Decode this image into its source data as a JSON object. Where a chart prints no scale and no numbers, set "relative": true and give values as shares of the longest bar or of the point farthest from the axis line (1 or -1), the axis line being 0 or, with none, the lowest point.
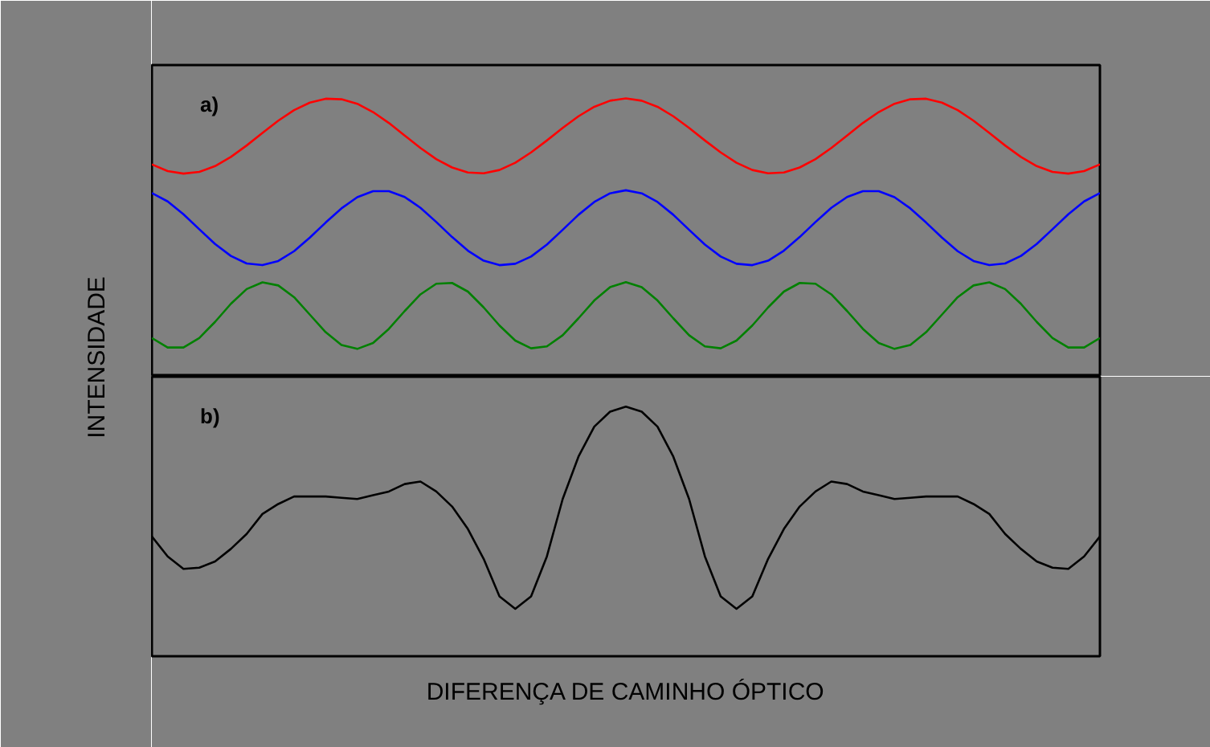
{
  "chart_data": [
    {
      "type": "line",
      "relative": true,
      "ylabel": "INTENSIDADE",
      "annotations": [
        "a)"
      ],
      "categories": [
        null,
        null,
        null,
        null,
        null,
        null,
        null,
        null,
        null,
        null,
        null,
        null,
        null,
        null,
        null,
        null,
        null,
        null,
        null,
        null,
        null,
        null,
        null,
        null,
        null,
        null,
        null,
        null,
        null,
        null,
        null,
        null,
        null,
        null,
        null,
        null,
        null,
        null,
        null,
        null,
        null,
        null,
        null,
        null,
        null,
        null,
        null,
        null,
        null,
        null,
        null,
        null,
        null,
        null,
        null,
        null,
        null,
        null,
        null,
        null,
        null
      ],
      "series": [
        {
          "color": "#ff0000",
          "values": [
            0.763,
            0.739,
            0.73,
            0.736,
            0.757,
            0.79,
            0.831,
            0.876,
            0.92,
            0.958,
            0.985,
            0.999,
            0.997,
            0.981,
            0.951,
            0.912,
            0.867,
            0.822,
            0.782,
            0.752,
            0.734,
            0.731,
            0.743,
            0.769,
            0.806,
            0.849,
            0.894,
            0.936,
            0.97,
            0.992,
            1.0,
            0.992,
            0.97,
            0.936,
            0.894,
            0.849,
            0.806,
            0.769,
            0.743,
            0.731,
            0.734,
            0.752,
            0.782,
            0.822,
            0.867,
            0.912,
            0.951,
            0.981,
            0.997,
            0.999,
            0.985,
            0.958,
            0.92,
            0.876,
            0.831,
            0.79,
            0.757,
            0.736,
            0.73,
            0.739,
            0.763
          ]
        },
        {
          "color": "#0000ff",
          "values": [
            0.66,
            0.63,
            0.584,
            0.53,
            0.477,
            0.434,
            0.407,
            0.401,
            0.416,
            0.451,
            0.5,
            0.554,
            0.605,
            0.645,
            0.667,
            0.667,
            0.646,
            0.607,
            0.556,
            0.502,
            0.453,
            0.417,
            0.401,
            0.406,
            0.432,
            0.475,
            0.528,
            0.582,
            0.628,
            0.659,
            0.67,
            0.659,
            0.628,
            0.582,
            0.528,
            0.475,
            0.432,
            0.406,
            0.401,
            0.417,
            0.453,
            0.502,
            0.556,
            0.607,
            0.646,
            0.667,
            0.667,
            0.645,
            0.605,
            0.554,
            0.5,
            0.451,
            0.416,
            0.401,
            0.407,
            0.434,
            0.477,
            0.53,
            0.584,
            0.63,
            0.66
          ]
        },
        {
          "color": "#008000",
          "values": [
            0.139,
            0.105,
            0.105,
            0.139,
            0.197,
            0.262,
            0.315,
            0.339,
            0.328,
            0.286,
            0.223,
            0.16,
            0.114,
            0.1,
            0.121,
            0.172,
            0.236,
            0.296,
            0.334,
            0.337,
            0.306,
            0.249,
            0.184,
            0.13,
            0.102,
            0.109,
            0.149,
            0.21,
            0.274,
            0.322,
            0.34,
            0.322,
            0.274,
            0.21,
            0.149,
            0.109,
            0.102,
            0.13,
            0.184,
            0.249,
            0.306,
            0.337,
            0.334,
            0.296,
            0.236,
            0.172,
            0.121,
            0.1,
            0.114,
            0.16,
            0.223,
            0.286,
            0.328,
            0.339,
            0.315,
            0.262,
            0.197,
            0.139,
            0.105,
            0.105,
            0.139
          ]
        }
      ]
    },
    {
      "type": "line",
      "relative": true,
      "xlabel": "DIFERENÇA DE CAMINHO ÓPTICO",
      "annotations": [
        "b)"
      ],
      "categories": [
        null,
        null,
        null,
        null,
        null,
        null,
        null,
        null,
        null,
        null,
        null,
        null,
        null,
        null,
        null,
        null,
        null,
        null,
        null,
        null,
        null,
        null,
        null,
        null,
        null,
        null,
        null,
        null,
        null,
        null,
        null,
        null,
        null,
        null,
        null,
        null,
        null,
        null,
        null,
        null,
        null,
        null,
        null,
        null,
        null,
        null,
        null,
        null,
        null,
        null,
        null,
        null,
        null,
        null,
        null,
        null,
        null,
        null,
        null,
        null,
        null
      ],
      "series": [
        {
          "color": "#000000",
          "values": [
            0.48,
            0.4,
            0.35,
            0.355,
            0.38,
            0.43,
            0.49,
            0.57,
            0.61,
            0.64,
            0.64,
            0.64,
            0.635,
            0.63,
            0.645,
            0.66,
            0.69,
            0.7,
            0.66,
            0.6,
            0.51,
            0.39,
            0.24,
            0.19,
            0.24,
            0.4,
            0.63,
            0.8,
            0.92,
            0.98,
            1.0,
            0.98,
            0.92,
            0.8,
            0.63,
            0.4,
            0.24,
            0.19,
            0.24,
            0.39,
            0.51,
            0.6,
            0.66,
            0.7,
            0.69,
            0.66,
            0.645,
            0.63,
            0.635,
            0.64,
            0.64,
            0.64,
            0.61,
            0.57,
            0.49,
            0.43,
            0.38,
            0.355,
            0.35,
            0.4,
            0.48
          ]
        }
      ]
    }
  ]
}
